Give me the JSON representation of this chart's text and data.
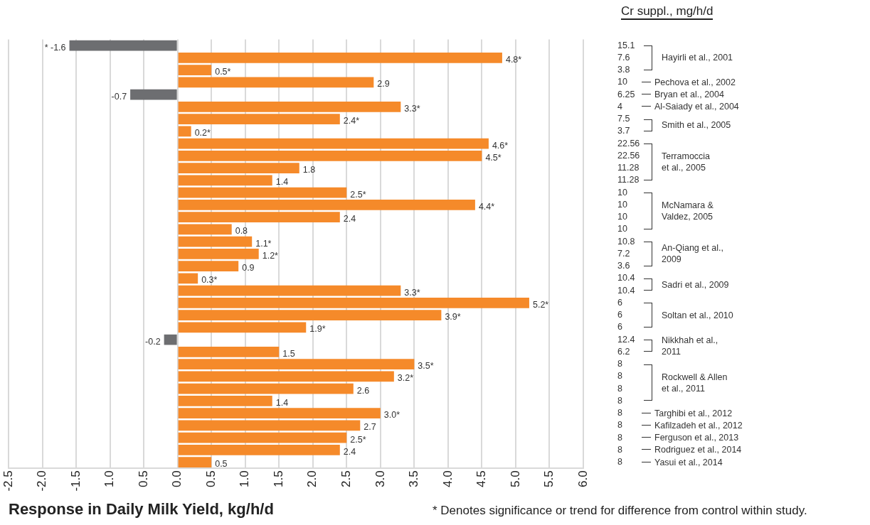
{
  "chart_data": {
    "type": "bar",
    "orientation": "horizontal",
    "xlabel": "Response in Daily Milk Yield, kg/h/d",
    "ylabel": "Cr suppl., mg/h/d",
    "categories": [
      "15.1",
      "7.6",
      "3.8",
      "10",
      "6.25",
      "4",
      "7.5",
      "3.7",
      "22.56",
      "22.56",
      "11.28",
      "11.28",
      "10",
      "10",
      "10",
      "10",
      "10.8",
      "7.2",
      "3.6",
      "10.4",
      "10.4",
      "6",
      "6",
      "6",
      "12.4",
      "6.2",
      "8",
      "8",
      "8",
      "8",
      "8",
      "8",
      "8",
      "8",
      "8"
    ],
    "values": [
      -1.6,
      4.8,
      0.5,
      2.9,
      -0.7,
      3.3,
      2.4,
      0.2,
      4.6,
      4.5,
      1.8,
      1.4,
      2.5,
      4.4,
      2.4,
      0.8,
      1.1,
      1.2,
      0.9,
      0.3,
      3.3,
      5.2,
      3.9,
      1.9,
      -0.2,
      1.5,
      3.5,
      3.2,
      2.6,
      1.4,
      3.0,
      2.7,
      2.5,
      2.4,
      0.5
    ],
    "value_labels": [
      "* -1.6",
      "4.8*",
      "0.5*",
      "2.9",
      "-0.7",
      "3.3*",
      "2.4*",
      "0.2*",
      "4.6*",
      "4.5*",
      "1.8",
      "1.4",
      "2.5*",
      "4.4*",
      "2.4",
      "0.8",
      "1.1*",
      "1.2*",
      "0.9",
      "0.3*",
      "3.3*",
      "5.2*",
      "3.9*",
      "1.9*",
      "-0.2",
      "1.5",
      "3.5*",
      "3.2*",
      "2.6",
      "1.4",
      "3.0*",
      "2.7",
      "2.5*",
      "2.4",
      "0.5"
    ],
    "colors": [
      "#6d6e71",
      "#f58a2a",
      "#f58a2a",
      "#f58a2a",
      "#6d6e71",
      "#f58a2a",
      "#f58a2a",
      "#f58a2a",
      "#f58a2a",
      "#f58a2a",
      "#f58a2a",
      "#f58a2a",
      "#f58a2a",
      "#f58a2a",
      "#f58a2a",
      "#f58a2a",
      "#f58a2a",
      "#f58a2a",
      "#f58a2a",
      "#f58a2a",
      "#f58a2a",
      "#f58a2a",
      "#f58a2a",
      "#f58a2a",
      "#6d6e71",
      "#f58a2a",
      "#f58a2a",
      "#f58a2a",
      "#f58a2a",
      "#f58a2a",
      "#f58a2a",
      "#f58a2a",
      "#f58a2a",
      "#f58a2a",
      "#f58a2a"
    ],
    "xlim": [
      -2.5,
      6.0
    ],
    "xticks": [
      -2.5,
      {
        "value": -2,
        "label": "-2.0"
      },
      -1.5,
      {
        "value": -1,
        "label": "1.0"
      },
      {
        "value": -0.5,
        "label": "0.5"
      },
      {
        "value": 0,
        "label": "0.0"
      },
      0.5,
      {
        "value": 1,
        "label": "1.0"
      },
      1.5,
      {
        "value": 2,
        "label": "2.0"
      },
      2.5,
      {
        "value": 3,
        "label": "3.0"
      },
      3.5,
      {
        "value": 4,
        "label": "4.0"
      },
      4.5,
      {
        "value": 5,
        "label": "5.0"
      },
      5.5,
      {
        "value": 6,
        "label": "6.0"
      }
    ],
    "grid": "x",
    "annotations": [
      "Hayirli et al., 2001",
      "Pechova et al., 2002",
      "Bryan et al., 2004",
      "Al-Saiady et al., 2004",
      "Smith et al., 2005",
      "Terramoccia\net al., 2005",
      "McNamara &\nValdez, 2005",
      "An-Qiang et al.,\n2009",
      "Sadri et al., 2009",
      "Soltan et al., 2010",
      "Nikkhah et al.,\n2011",
      "Rockwell & Allen\net al., 2011",
      "Targhibi et al., 2012",
      "Kafilzadeh et al., 2012",
      "Ferguson et al., 2013",
      "Rodriguez et al., 2014",
      "Yasui et al., 2014",
      "* Denotes significance or trend for difference from control within study."
    ]
  }
}
